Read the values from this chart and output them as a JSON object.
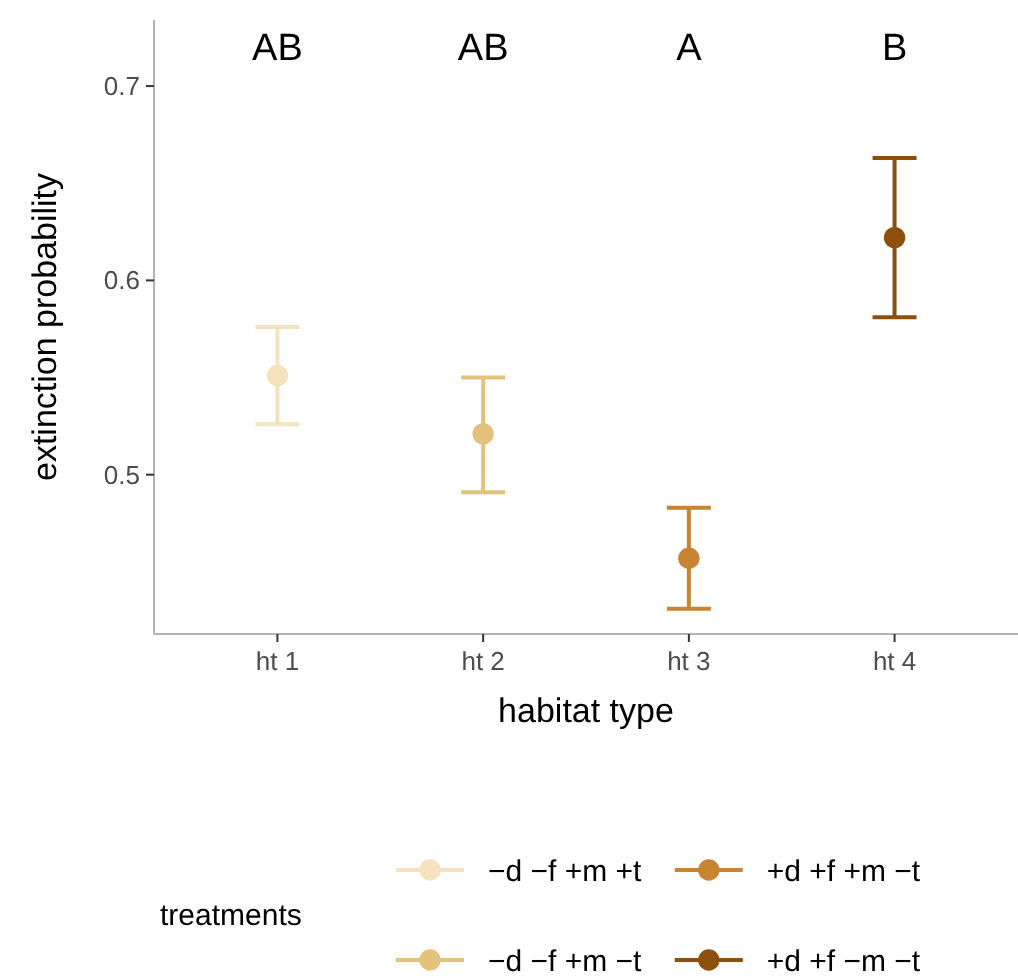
{
  "chart_data": {
    "type": "scatter",
    "xlabel": "habitat type",
    "ylabel": "extinction probability",
    "legend_title": "treatments",
    "categories": [
      "ht 1",
      "ht 2",
      "ht 3",
      "ht 4"
    ],
    "series": [
      {
        "name": "−d −f +m +t",
        "color": "#f5e3bd",
        "x": [
          "ht 1"
        ],
        "values": [
          0.551
        ],
        "errors": [
          [
            0.526,
            0.576
          ]
        ]
      },
      {
        "name": "−d −f +m −t",
        "color": "#e3c27c",
        "x": [
          "ht 2"
        ],
        "values": [
          0.521
        ],
        "errors": [
          [
            0.491,
            0.55
          ]
        ]
      },
      {
        "name": "+d +f +m −t",
        "color": "#c88430",
        "x": [
          "ht 3"
        ],
        "values": [
          0.457
        ],
        "errors": [
          [
            0.431,
            0.483
          ]
        ]
      },
      {
        "name": "+d +f −m −t",
        "color": "#8c500c",
        "x": [
          "ht 4"
        ],
        "values": [
          0.622
        ],
        "errors": [
          [
            0.581,
            0.663
          ]
        ]
      }
    ],
    "ylim": [
      0.418,
      0.734
    ],
    "yticks": [
      0.5,
      0.6,
      0.7
    ],
    "grid": false,
    "legend": "bottom",
    "marker": "circle",
    "annotations": [
      "AB",
      "AB",
      "A",
      "B"
    ]
  }
}
